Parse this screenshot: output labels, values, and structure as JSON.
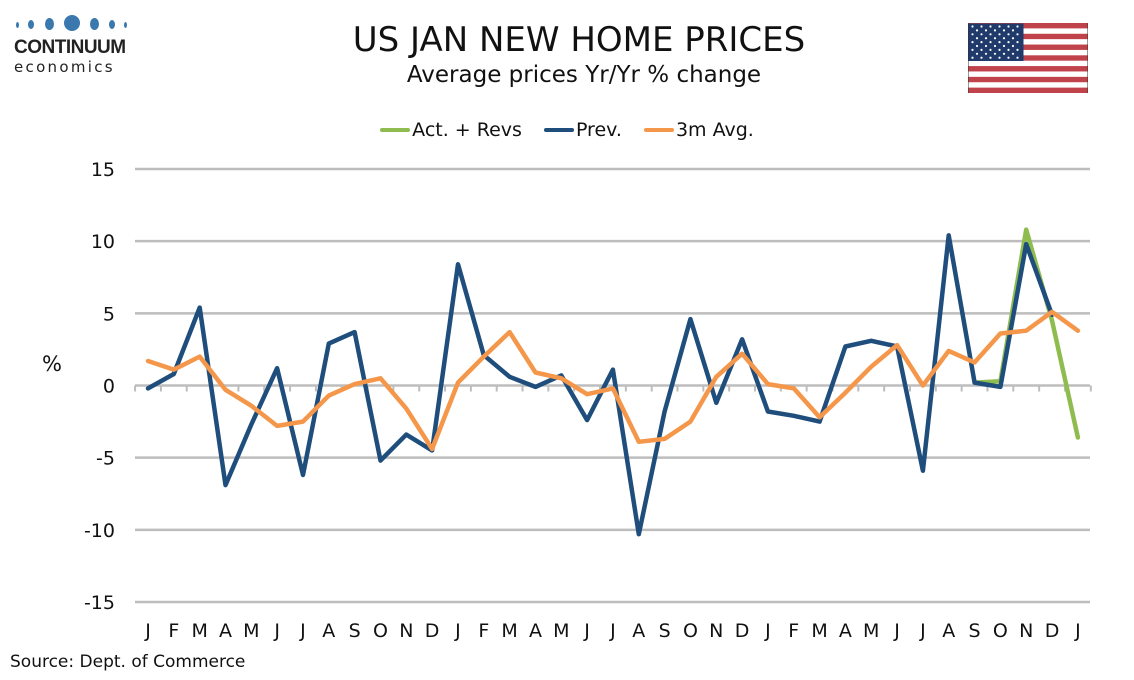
{
  "logo": {
    "name": "CONTINUUM",
    "sub": "economics"
  },
  "flag_icon": "us-flag-icon",
  "chart_data": {
    "type": "line",
    "title": "US JAN NEW HOME PRICES",
    "subtitle": "Average prices Yr/Yr % change",
    "xlabel": "",
    "ylabel": "%",
    "ylim": [
      -15,
      15
    ],
    "yticks": [
      15,
      10,
      5,
      0,
      -5,
      -10,
      -15
    ],
    "grid": true,
    "legend_position": "top-center",
    "categories": [
      "J",
      "F",
      "M",
      "A",
      "M",
      "J",
      "J",
      "A",
      "S",
      "O",
      "N",
      "D",
      "J",
      "F",
      "M",
      "A",
      "M",
      "J",
      "J",
      "A",
      "S",
      "O",
      "N",
      "D",
      "J",
      "F",
      "M",
      "A",
      "M",
      "J",
      "J",
      "A",
      "S",
      "O",
      "N",
      "D",
      "J"
    ],
    "series": [
      {
        "name": "Act. + Revs",
        "color": "#8fbc4f",
        "values": [
          null,
          null,
          null,
          null,
          null,
          null,
          null,
          null,
          null,
          null,
          null,
          null,
          null,
          null,
          null,
          null,
          null,
          null,
          null,
          null,
          null,
          null,
          null,
          null,
          null,
          null,
          null,
          null,
          null,
          null,
          null,
          null,
          0.2,
          0.3,
          10.8,
          4.5,
          -3.6
        ]
      },
      {
        "name": "Prev.",
        "color": "#1f4e7d",
        "values": [
          -0.2,
          0.8,
          5.4,
          -6.9,
          -2.7,
          1.2,
          -6.2,
          2.9,
          3.7,
          -5.2,
          -3.4,
          -4.5,
          8.4,
          2.1,
          0.6,
          -0.1,
          0.7,
          -2.4,
          1.1,
          -10.3,
          -1.8,
          4.6,
          -1.2,
          3.2,
          -1.8,
          -2.1,
          -2.5,
          2.7,
          3.1,
          2.7,
          -5.9,
          10.4,
          0.2,
          -0.1,
          9.8,
          4.9,
          null
        ]
      },
      {
        "name": "3m Avg.",
        "color": "#f5974a",
        "values": [
          1.7,
          1.1,
          2.0,
          -0.3,
          -1.4,
          -2.8,
          -2.5,
          -0.7,
          0.1,
          0.5,
          -1.6,
          -4.4,
          0.2,
          2.0,
          3.7,
          0.9,
          0.5,
          -0.6,
          -0.2,
          -3.9,
          -3.7,
          -2.5,
          0.6,
          2.2,
          0.1,
          -0.2,
          -2.2,
          -0.5,
          1.3,
          2.8,
          0.0,
          2.4,
          1.6,
          3.6,
          3.8,
          5.1,
          3.8
        ]
      }
    ]
  },
  "source": "Source: Dept. of Commerce"
}
